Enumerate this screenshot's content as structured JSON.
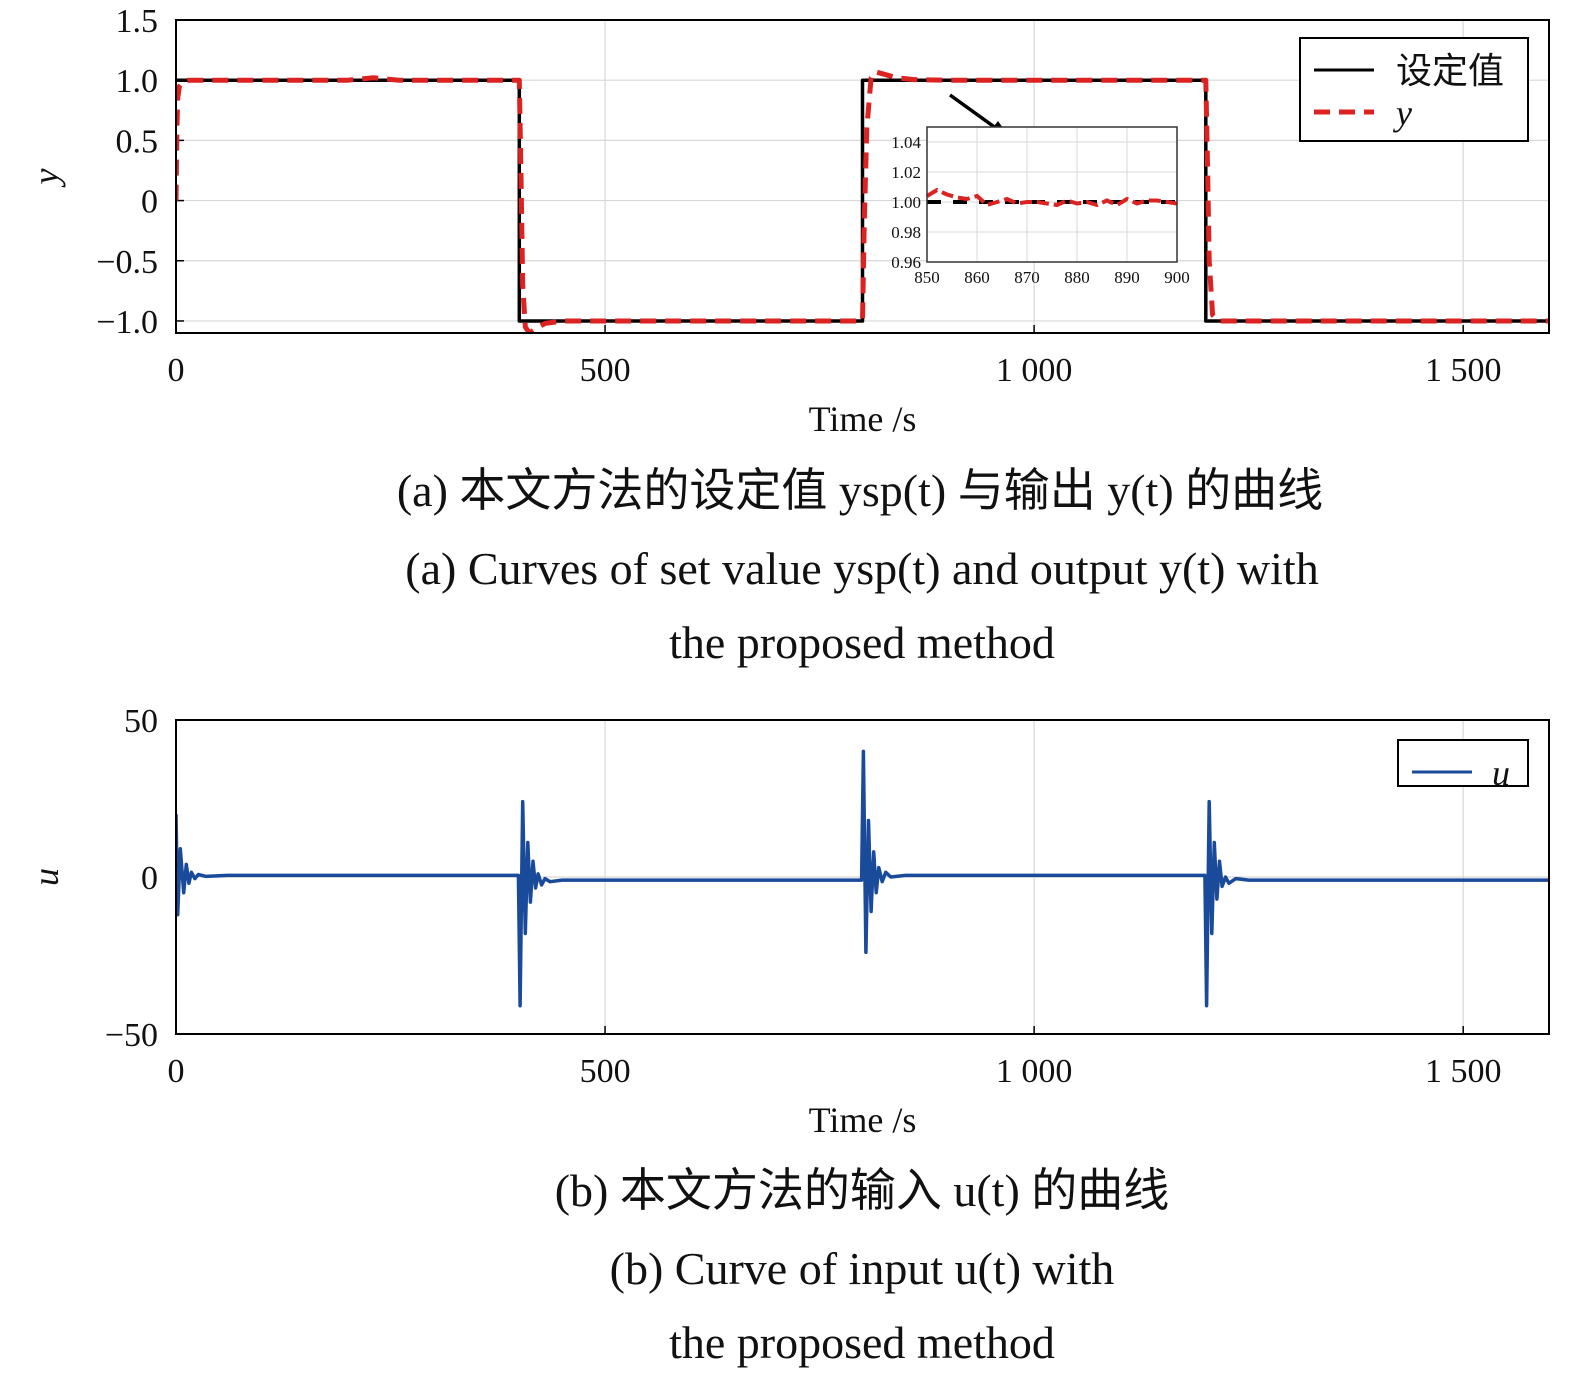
{
  "chart_data": [
    {
      "type": "line",
      "xlabel": "Time /s",
      "ylabel": "y",
      "xlim": [
        0,
        1600
      ],
      "ylim": [
        -1.1,
        1.5
      ],
      "xticks": [
        0,
        500,
        1000,
        1500
      ],
      "xtick_labels": [
        "0",
        "500",
        "1 000",
        "1 500"
      ],
      "yticks": [
        1.5,
        1.0,
        0.5,
        0,
        -0.5,
        -1.0
      ],
      "ytick_labels": [
        "1.5",
        "1.0",
        "0.5",
        "0",
        "−0.5",
        "−1.0"
      ],
      "grid": true,
      "legend_position": "top-right",
      "series": [
        {
          "name": "设定值",
          "color": "#000000",
          "style": "solid",
          "points": [
            [
              0,
              1
            ],
            [
              400,
              1
            ],
            [
              400,
              -1
            ],
            [
              800,
              -1
            ],
            [
              800,
              1
            ],
            [
              1200,
              1
            ],
            [
              1200,
              -1
            ],
            [
              1600,
              -1
            ]
          ]
        },
        {
          "name": "y",
          "color": "#dd2222",
          "style": "dashed",
          "points": [
            [
              0,
              0
            ],
            [
              1,
              0.6
            ],
            [
              2,
              0.85
            ],
            [
              4,
              0.95
            ],
            [
              8,
              0.99
            ],
            [
              15,
              1.0
            ],
            [
              200,
              1.0
            ],
            [
              230,
              1.02
            ],
            [
              260,
              1.0
            ],
            [
              400,
              1.0
            ],
            [
              402,
              0.2
            ],
            [
              404,
              -0.7
            ],
            [
              407,
              -1.05
            ],
            [
              412,
              -1.1
            ],
            [
              420,
              -1.06
            ],
            [
              430,
              -1.02
            ],
            [
              450,
              -1.0
            ],
            [
              800,
              -1.0
            ],
            [
              802,
              -0.2
            ],
            [
              805,
              0.6
            ],
            [
              810,
              1.02
            ],
            [
              815,
              1.07
            ],
            [
              825,
              1.05
            ],
            [
              840,
              1.02
            ],
            [
              860,
              1.005
            ],
            [
              900,
              1.0
            ],
            [
              1200,
              1.0
            ],
            [
              1202,
              0.3
            ],
            [
              1204,
              -0.5
            ],
            [
              1208,
              -0.95
            ],
            [
              1215,
              -1.0
            ],
            [
              1600,
              -1.0
            ]
          ]
        }
      ],
      "inset": {
        "xlim": [
          850,
          900
        ],
        "ylim": [
          0.96,
          1.05
        ],
        "xticks": [
          850,
          860,
          870,
          880,
          890,
          900
        ],
        "xtick_labels": [
          "850",
          "860",
          "870",
          "880",
          "890",
          "900"
        ],
        "yticks": [
          1.04,
          1.02,
          1.0,
          0.98,
          0.96
        ],
        "ytick_labels": [
          "1.04",
          "1.02",
          "1.00",
          "0.98",
          "0.96"
        ],
        "setpoint": [
          [
            850,
            1.0
          ],
          [
            900,
            1.0
          ]
        ],
        "output": [
          [
            850,
            1.004
          ],
          [
            852,
            1.008
          ],
          [
            854,
            1.005
          ],
          [
            856,
            1.003
          ],
          [
            858,
            1.002
          ],
          [
            860,
            1.004
          ],
          [
            862,
            0.998
          ],
          [
            864,
            1.0
          ],
          [
            866,
            1.002
          ],
          [
            868,
            0.999
          ],
          [
            870,
            1.0
          ],
          [
            872,
            1.0
          ],
          [
            874,
            0.999
          ],
          [
            876,
            0.998
          ],
          [
            878,
            1.001
          ],
          [
            880,
            0.999
          ],
          [
            882,
            1.0
          ],
          [
            884,
            0.998
          ],
          [
            886,
            1.001
          ],
          [
            888,
            0.998
          ],
          [
            890,
            1.002
          ],
          [
            892,
            0.999
          ],
          [
            894,
            1.001
          ],
          [
            896,
            1.001
          ],
          [
            898,
            1.0
          ],
          [
            900,
            0.999
          ]
        ]
      },
      "caption_cn": "(a) 本文方法的设定值 ysp(t) 与输出 y(t) 的曲线",
      "caption_en_1": "(a) Curves of set value ysp(t) and output y(t) with",
      "caption_en_2": "the proposed method"
    },
    {
      "type": "line",
      "xlabel": "Time /s",
      "ylabel": "u",
      "xlim": [
        0,
        1600
      ],
      "ylim": [
        -50,
        50
      ],
      "xticks": [
        0,
        500,
        1000,
        1500
      ],
      "xtick_labels": [
        "0",
        "500",
        "1 000",
        "1 500"
      ],
      "yticks": [
        50,
        0,
        -50
      ],
      "ytick_labels": [
        "50",
        "0",
        "−50"
      ],
      "grid": true,
      "legend_position": "top-right",
      "series": [
        {
          "name": "u",
          "color": "#1a4a9a",
          "style": "solid",
          "points": [
            [
              0,
              20
            ],
            [
              2,
              -12
            ],
            [
              5,
              9
            ],
            [
              9,
              -5
            ],
            [
              12,
              4
            ],
            [
              15,
              -2
            ],
            [
              18,
              1.5
            ],
            [
              22,
              -0.5
            ],
            [
              26,
              0.8
            ],
            [
              35,
              0.2
            ],
            [
              60,
              0.5
            ],
            [
              399,
              0.5
            ],
            [
              401,
              -41
            ],
            [
              404,
              24
            ],
            [
              407,
              -18
            ],
            [
              410,
              11
            ],
            [
              413,
              -8
            ],
            [
              416,
              5
            ],
            [
              419,
              -3.5
            ],
            [
              422,
              1
            ],
            [
              426,
              -2.5
            ],
            [
              430,
              -0.5
            ],
            [
              436,
              -1.5
            ],
            [
              450,
              -1
            ],
            [
              799,
              -1
            ],
            [
              801,
              40
            ],
            [
              804,
              -24
            ],
            [
              807,
              18
            ],
            [
              810,
              -11
            ],
            [
              813,
              8
            ],
            [
              816,
              -5
            ],
            [
              819,
              3
            ],
            [
              823,
              -1.5
            ],
            [
              827,
              1.5
            ],
            [
              833,
              0
            ],
            [
              850,
              0.5
            ],
            [
              1199,
              0.5
            ],
            [
              1201,
              -41
            ],
            [
              1204,
              24
            ],
            [
              1207,
              -18
            ],
            [
              1210,
              11
            ],
            [
              1213,
              -7
            ],
            [
              1216,
              5
            ],
            [
              1219,
              -3
            ],
            [
              1223,
              0
            ],
            [
              1227,
              -2
            ],
            [
              1235,
              -0.5
            ],
            [
              1250,
              -1
            ],
            [
              1600,
              -1
            ]
          ]
        }
      ],
      "caption_cn": "(b) 本文方法的输入 u(t) 的曲线",
      "caption_en_1": "(b) Curve of input u(t) with",
      "caption_en_2": "the proposed method"
    }
  ]
}
